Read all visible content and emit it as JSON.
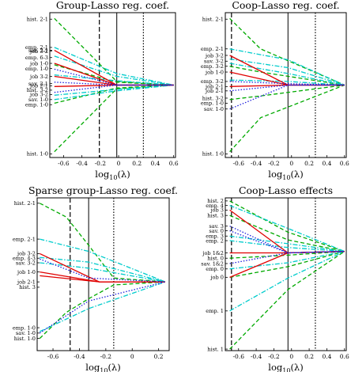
{
  "chart_data": [
    {
      "type": "line",
      "title": "Group-Lasso reg. coef.",
      "xlabel": "log10(λ)",
      "xlim": [
        -0.75,
        0.62
      ],
      "ylim": [
        -1,
        1
      ],
      "xticks": [
        "-0.6",
        "-0.4",
        "-0.2",
        "0",
        "0.2",
        "0.4",
        "0.6"
      ],
      "xtick_values": [
        -0.6,
        -0.4,
        -0.2,
        0,
        0.2,
        0.4,
        0.6
      ],
      "vlines": [
        {
          "x": -0.21,
          "style": "dashed"
        },
        {
          "x": -0.02,
          "style": "solid"
        },
        {
          "x": 0.27,
          "style": "dotted"
        }
      ],
      "grid": false,
      "legend": "none",
      "labels": [
        {
          "text": "hist. 2-1",
          "y": 0.91
        },
        {
          "text": "emp. 2-1",
          "y": 0.52
        },
        {
          "text": "sav. 2-1",
          "y": 0.48
        },
        {
          "text": "job 3-2",
          "y": 0.47
        },
        {
          "text": "emp. 6-3",
          "y": 0.38
        },
        {
          "text": "job 1-0",
          "y": 0.3
        },
        {
          "text": "emp. 1-0",
          "y": 0.23
        },
        {
          "text": "job 3-2",
          "y": 0.12
        },
        {
          "text": "sav. 2-1",
          "y": 0.02
        },
        {
          "text": "job 2-1",
          "y": -0.01
        },
        {
          "text": "hist. 3-2",
          "y": -0.07
        },
        {
          "text": "job 3-2",
          "y": -0.13
        },
        {
          "text": "sav. 1-0",
          "y": -0.2
        },
        {
          "text": "emp. 1-0",
          "y": -0.27
        },
        {
          "text": "hist. 1-0",
          "y": -0.95
        }
      ],
      "series": [
        {
          "color": "#00aa00",
          "x": [
            -0.7,
            -0.02,
            0.6
          ],
          "values": [
            0.92,
            0.05,
            0.0
          ]
        },
        {
          "color": "#00aa00",
          "x": [
            -0.7,
            -0.02,
            0.6
          ],
          "values": [
            -0.92,
            -0.05,
            0.0
          ]
        },
        {
          "color": "#00aa00",
          "x": [
            -0.7,
            -0.02,
            0.6
          ],
          "values": [
            0.28,
            0.04,
            0.0
          ]
        },
        {
          "color": "#00aa00",
          "x": [
            -0.7,
            -0.02,
            0.6
          ],
          "values": [
            -0.25,
            -0.04,
            0.0
          ]
        },
        {
          "color": "#00cccc",
          "x": [
            -0.7,
            -0.02,
            0.6
          ],
          "values": [
            0.52,
            0.16,
            0.0
          ]
        },
        {
          "color": "#00cccc",
          "x": [
            -0.7,
            -0.02,
            0.6
          ],
          "values": [
            0.4,
            0.12,
            0.0
          ]
        },
        {
          "color": "#00cccc",
          "x": [
            -0.7,
            -0.02,
            0.6
          ],
          "values": [
            0.14,
            0.06,
            0.0
          ]
        },
        {
          "color": "#00cccc",
          "x": [
            -0.7,
            -0.02,
            0.6
          ],
          "values": [
            -0.14,
            -0.06,
            0.0
          ]
        },
        {
          "color": "#00cccc",
          "x": [
            -0.7,
            -0.02,
            0.6
          ],
          "values": [
            -0.2,
            -0.08,
            0.0
          ]
        },
        {
          "color": "#e00000",
          "x": [
            -0.7,
            -0.02,
            0.6
          ],
          "values": [
            0.48,
            0.0,
            0.0
          ]
        },
        {
          "color": "#e00000",
          "x": [
            -0.7,
            -0.02,
            0.6
          ],
          "values": [
            0.3,
            0.0,
            0.0
          ]
        },
        {
          "color": "#e00000",
          "x": [
            -0.7,
            -0.02,
            0.6
          ],
          "values": [
            0.12,
            0.0,
            0.0
          ]
        },
        {
          "color": "#e00000",
          "x": [
            -0.7,
            -0.02,
            0.6
          ],
          "values": [
            -0.02,
            0.0,
            0.0
          ]
        },
        {
          "color": "#2222dd",
          "x": [
            -0.7,
            -0.02,
            0.6
          ],
          "values": [
            0.22,
            0.0,
            0.0
          ]
        },
        {
          "color": "#2222dd",
          "x": [
            -0.7,
            -0.02,
            0.6
          ],
          "values": [
            -0.1,
            0.0,
            0.0
          ]
        },
        {
          "color": "#2222dd",
          "x": [
            -0.7,
            -0.02,
            0.6
          ],
          "values": [
            0.04,
            0.0,
            0.0
          ]
        }
      ]
    },
    {
      "type": "line",
      "title": "Coop-Lasso reg. coef.",
      "xlabel": "log10(λ)",
      "xlim": [
        -0.75,
        0.62
      ],
      "ylim": [
        -1,
        1
      ],
      "xticks": [
        "-0.6",
        "-0.4",
        "-0.2",
        "0",
        "0.2",
        "0.4",
        "0.6"
      ],
      "xtick_values": [
        -0.6,
        -0.4,
        -0.2,
        0,
        0.2,
        0.4,
        0.6
      ],
      "vlines": [
        {
          "x": -0.68,
          "style": "dashed"
        },
        {
          "x": -0.04,
          "style": "solid"
        },
        {
          "x": 0.27,
          "style": "dotted"
        }
      ],
      "grid": false,
      "legend": "none",
      "labels": [
        {
          "text": "hist. 2-1",
          "y": 0.91
        },
        {
          "text": "emp. 2-1",
          "y": 0.5
        },
        {
          "text": "job 3-2",
          "y": 0.41
        },
        {
          "text": "sav. 3-2",
          "y": 0.33
        },
        {
          "text": "emp. 3-2",
          "y": 0.26
        },
        {
          "text": "job 1-0",
          "y": 0.18
        },
        {
          "text": "emp. 3-2",
          "y": 0.05
        },
        {
          "text": "job 2-1",
          "y": -0.02
        },
        {
          "text": "job 2-1",
          "y": -0.08
        },
        {
          "text": "hist. 3-2",
          "y": -0.18
        },
        {
          "text": "emp. 1-0",
          "y": -0.25
        },
        {
          "text": "sav. 1-0",
          "y": -0.33
        },
        {
          "text": "hist. 1-0",
          "y": -0.95
        }
      ],
      "series": [
        {
          "color": "#00aa00",
          "x": [
            -0.7,
            -0.35,
            0.6
          ],
          "values": [
            0.92,
            0.5,
            0.0
          ]
        },
        {
          "color": "#00aa00",
          "x": [
            -0.7,
            -0.35,
            0.6
          ],
          "values": [
            -0.92,
            -0.45,
            0.0
          ]
        },
        {
          "color": "#00aa00",
          "x": [
            -0.7,
            -0.35,
            0.6
          ],
          "values": [
            0.26,
            0.18,
            0.0
          ]
        },
        {
          "color": "#00aa00",
          "x": [
            -0.7,
            -0.35,
            0.6
          ],
          "values": [
            -0.2,
            -0.15,
            0.0
          ]
        },
        {
          "color": "#00cccc",
          "x": [
            -0.7,
            -0.04,
            0.6
          ],
          "values": [
            0.5,
            0.35,
            0.0
          ]
        },
        {
          "color": "#00cccc",
          "x": [
            -0.7,
            -0.04,
            0.6
          ],
          "values": [
            0.36,
            0.24,
            0.0
          ]
        },
        {
          "color": "#00cccc",
          "x": [
            -0.7,
            -0.04,
            0.6
          ],
          "values": [
            0.3,
            0.16,
            0.0
          ]
        },
        {
          "color": "#00cccc",
          "x": [
            -0.7,
            -0.04,
            0.6
          ],
          "values": [
            0.07,
            0.05,
            0.0
          ]
        },
        {
          "color": "#e00000",
          "x": [
            -0.7,
            -0.04,
            0.6
          ],
          "values": [
            0.41,
            0.0,
            0.0
          ]
        },
        {
          "color": "#e00000",
          "x": [
            -0.7,
            -0.04,
            0.6
          ],
          "values": [
            0.18,
            0.0,
            0.0
          ]
        },
        {
          "color": "#e00000",
          "x": [
            -0.7,
            -0.04,
            0.6
          ],
          "values": [
            -0.02,
            0.0,
            0.0
          ]
        },
        {
          "color": "#2222dd",
          "x": [
            -0.7,
            -0.04,
            0.6
          ],
          "values": [
            -0.33,
            0.0,
            0.0
          ]
        },
        {
          "color": "#2222dd",
          "x": [
            -0.7,
            -0.04,
            0.6
          ],
          "values": [
            -0.08,
            0.0,
            0.0
          ]
        },
        {
          "color": "#2222dd",
          "x": [
            -0.7,
            -0.04,
            0.6
          ],
          "values": [
            0.05,
            0.02,
            0.0
          ]
        }
      ]
    },
    {
      "type": "line",
      "title": "Sparse group-Lasso reg. coef.",
      "xlabel": "log10(λ)",
      "xlim": [
        -0.72,
        0.28
      ],
      "ylim": [
        -1,
        1
      ],
      "xticks": [
        "-0.6",
        "-0.4",
        "-0.2",
        "0",
        "0.2"
      ],
      "xtick_values": [
        -0.6,
        -0.4,
        -0.2,
        0,
        0.2
      ],
      "vlines": [
        {
          "x": -0.47,
          "style": "dashed"
        },
        {
          "x": -0.33,
          "style": "solid"
        },
        {
          "x": -0.14,
          "style": "dotted"
        }
      ],
      "grid": false,
      "legend": "none",
      "labels": [
        {
          "text": "hist. 2-1",
          "y": 0.93
        },
        {
          "text": "emp. 2-1",
          "y": 0.46
        },
        {
          "text": "job 3-2",
          "y": 0.27
        },
        {
          "text": "emp. 4-3",
          "y": 0.21
        },
        {
          "text": "sav. 3-2",
          "y": 0.15
        },
        {
          "text": "job 1-0",
          "y": 0.03
        },
        {
          "text": "job 2-1",
          "y": -0.1
        },
        {
          "text": "hist. 3",
          "y": -0.17
        },
        {
          "text": "emp. 1-0",
          "y": -0.7
        },
        {
          "text": "sav. 1-0",
          "y": -0.77
        },
        {
          "text": "hist. 1-0",
          "y": -0.84
        }
      ],
      "series": [
        {
          "color": "#00aa00",
          "x": [
            -0.7,
            -0.5,
            -0.33,
            -0.14,
            0.25
          ],
          "values": [
            0.93,
            0.75,
            0.38,
            -0.05,
            -0.1
          ]
        },
        {
          "color": "#00aa00",
          "x": [
            -0.7,
            -0.5,
            -0.33,
            -0.14,
            0.25
          ],
          "values": [
            -0.84,
            -0.5,
            -0.32,
            -0.14,
            -0.1
          ]
        },
        {
          "color": "#00cccc",
          "x": [
            -0.7,
            -0.33,
            0.25
          ],
          "values": [
            0.46,
            0.3,
            -0.1
          ]
        },
        {
          "color": "#00cccc",
          "x": [
            -0.7,
            -0.33,
            0.25
          ],
          "values": [
            0.22,
            0.16,
            -0.1
          ]
        },
        {
          "color": "#00cccc",
          "x": [
            -0.7,
            -0.33,
            0.25
          ],
          "values": [
            0.15,
            0.08,
            -0.1
          ]
        },
        {
          "color": "#00cccc",
          "x": [
            -0.7,
            -0.33,
            0.25
          ],
          "values": [
            -0.75,
            -0.45,
            -0.1
          ]
        },
        {
          "color": "#e00000",
          "x": [
            -0.7,
            -0.25,
            0.25
          ],
          "values": [
            0.27,
            -0.1,
            -0.1
          ]
        },
        {
          "color": "#e00000",
          "x": [
            -0.7,
            -0.25,
            0.25
          ],
          "values": [
            0.03,
            -0.1,
            -0.1
          ]
        },
        {
          "color": "#e00000",
          "x": [
            -0.7,
            -0.25,
            0.25
          ],
          "values": [
            -0.02,
            -0.1,
            -0.1
          ]
        },
        {
          "color": "#2222dd",
          "x": [
            -0.7,
            -0.33,
            0.25
          ],
          "values": [
            0.2,
            -0.05,
            -0.1
          ]
        },
        {
          "color": "#2222dd",
          "x": [
            -0.7,
            -0.33,
            0.25
          ],
          "values": [
            -0.77,
            -0.35,
            -0.1
          ]
        }
      ]
    },
    {
      "type": "line",
      "title": "Coop-Lasso effects",
      "xlabel": "log10(λ)",
      "xlim": [
        -0.75,
        0.62
      ],
      "ylim": [
        -1,
        1
      ],
      "xticks": [
        "-0.6",
        "-0.4",
        "-0.2",
        "0",
        "0.2",
        "0.4",
        "0.6"
      ],
      "xtick_values": [
        -0.6,
        -0.4,
        -0.2,
        0,
        0.2,
        0.4,
        0.6
      ],
      "vlines": [
        {
          "x": -0.68,
          "style": "dashed"
        },
        {
          "x": -0.04,
          "style": "solid"
        },
        {
          "x": 0.27,
          "style": "dotted"
        }
      ],
      "grid": false,
      "legend": "none",
      "labels": [
        {
          "text": "hist. 2",
          "y": 0.96
        },
        {
          "text": "emp. 4",
          "y": 0.9
        },
        {
          "text": "job 3",
          "y": 0.84
        },
        {
          "text": "hist. 3",
          "y": 0.77
        },
        {
          "text": "sav. 3",
          "y": 0.63
        },
        {
          "text": "sav. 0",
          "y": 0.57
        },
        {
          "text": "emp. 3",
          "y": 0.5
        },
        {
          "text": "emp. 2",
          "y": 0.44
        },
        {
          "text": "job 1&2",
          "y": 0.28
        },
        {
          "text": "hist. 0",
          "y": 0.21
        },
        {
          "text": "sav. 1&2",
          "y": 0.14
        },
        {
          "text": "emp. 0",
          "y": 0.07
        },
        {
          "text": "job 0",
          "y": -0.04
        },
        {
          "text": "emp. 1",
          "y": -0.48
        },
        {
          "text": "hist. 1",
          "y": -0.98
        }
      ],
      "series": [
        {
          "color": "#00aa00",
          "x": [
            -0.7,
            -0.04,
            0.6
          ],
          "values": [
            0.96,
            0.55,
            0.3
          ]
        },
        {
          "color": "#00aa00",
          "x": [
            -0.7,
            -0.04,
            0.6
          ],
          "values": [
            -0.98,
            -0.2,
            0.3
          ]
        },
        {
          "color": "#00aa00",
          "x": [
            -0.7,
            -0.04,
            0.6
          ],
          "values": [
            0.77,
            0.45,
            0.3
          ]
        },
        {
          "color": "#00aa00",
          "x": [
            -0.7,
            -0.04,
            0.6
          ],
          "values": [
            0.21,
            0.25,
            0.3
          ]
        },
        {
          "color": "#00aa00",
          "x": [
            -0.7,
            -0.04,
            0.6
          ],
          "values": [
            -0.04,
            0.1,
            0.3
          ]
        },
        {
          "color": "#00cccc",
          "x": [
            -0.7,
            -0.04,
            0.6
          ],
          "values": [
            0.9,
            0.6,
            0.3
          ]
        },
        {
          "color": "#00cccc",
          "x": [
            -0.7,
            -0.04,
            0.6
          ],
          "values": [
            0.5,
            0.4,
            0.3
          ]
        },
        {
          "color": "#00cccc",
          "x": [
            -0.7,
            -0.04,
            0.6
          ],
          "values": [
            0.44,
            0.35,
            0.3
          ]
        },
        {
          "color": "#00cccc",
          "x": [
            -0.7,
            -0.04,
            0.6
          ],
          "values": [
            0.07,
            0.15,
            0.3
          ]
        },
        {
          "color": "#00cccc",
          "x": [
            -0.7,
            -0.04,
            0.6
          ],
          "values": [
            -0.48,
            -0.05,
            0.3
          ]
        },
        {
          "color": "#e00000",
          "x": [
            -0.7,
            -0.04,
            0.6
          ],
          "values": [
            0.84,
            0.28,
            0.3
          ]
        },
        {
          "color": "#e00000",
          "x": [
            -0.7,
            -0.04,
            0.6
          ],
          "values": [
            0.28,
            0.28,
            0.3
          ]
        },
        {
          "color": "#e00000",
          "x": [
            -0.7,
            -0.04,
            0.6
          ],
          "values": [
            -0.04,
            0.28,
            0.3
          ]
        },
        {
          "color": "#2222dd",
          "x": [
            -0.7,
            -0.04,
            0.6
          ],
          "values": [
            0.63,
            0.28,
            0.3
          ]
        },
        {
          "color": "#2222dd",
          "x": [
            -0.7,
            -0.04,
            0.6
          ],
          "values": [
            0.57,
            0.28,
            0.3
          ]
        },
        {
          "color": "#2222dd",
          "x": [
            -0.7,
            -0.04,
            0.6
          ],
          "values": [
            0.14,
            0.28,
            0.3
          ]
        }
      ]
    }
  ]
}
